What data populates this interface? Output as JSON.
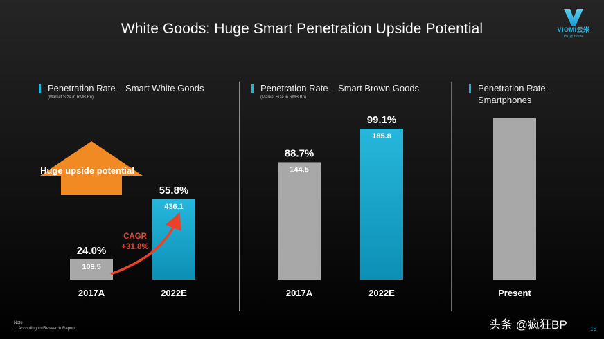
{
  "slide": {
    "title": "White Goods: Huge Smart Penetration Upside Potential",
    "page_number": "15",
    "note_title": "Note",
    "note_text": "1. According to iResearch Raport",
    "watermark": "头条 @疯狂BP"
  },
  "logo": {
    "text": "VIOMI云米",
    "tagline": "IoT @ Home",
    "color": "#2bb3e0"
  },
  "annotations": {
    "arrow_text": "Huge upside potential",
    "arrow_color": "#f28a24",
    "cagr_label": "CAGR",
    "cagr_value": "+31.8%",
    "cagr_color": "#e8432a"
  },
  "colors": {
    "gray_bar": "#a8a8a8",
    "blue_bar_top": "#27b7dc",
    "blue_bar_bottom": "#0d8fb5",
    "accent": "#2bb3d6"
  },
  "chart_data": [
    {
      "type": "bar",
      "title": "Penetration Rate – Smart White Goods",
      "subtitle": "(Market Size in RMB Bn)",
      "categories": [
        "2017A",
        "2022E"
      ],
      "values": [
        109.5,
        436.1
      ],
      "value_labels": [
        "109.5",
        "436.1"
      ],
      "penetration_labels": [
        "24.0%",
        "55.8%"
      ],
      "ylim": [
        0,
        436.1
      ]
    },
    {
      "type": "bar",
      "title": "Penetration Rate – Smart Brown Goods",
      "subtitle": "(Market Size in RMB Bn)",
      "categories": [
        "2017A",
        "2022E"
      ],
      "values": [
        144.5,
        185.8
      ],
      "value_labels": [
        "144.5",
        "185.8"
      ],
      "penetration_labels": [
        "88.7%",
        "99.1%"
      ],
      "ylim": [
        0,
        185.8
      ]
    },
    {
      "type": "bar",
      "title_line1": "Penetration Rate –",
      "title_line2": "Smartphones",
      "categories": [
        "Present"
      ],
      "values": [
        100
      ],
      "ylim": [
        0,
        100
      ]
    }
  ]
}
